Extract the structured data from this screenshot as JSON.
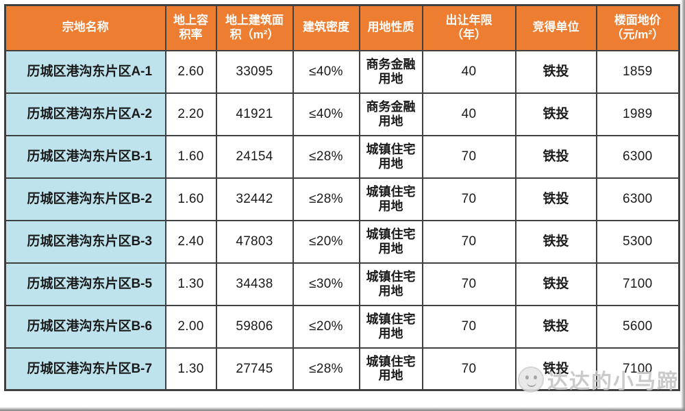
{
  "colors": {
    "header_bg": "#ED7D31",
    "header_text": "#FFFFFF",
    "name_col_bg": "#BEE3ED",
    "border": "#404040",
    "body_text": "#1A1A1A",
    "watermark": "#C3C3C3"
  },
  "table": {
    "headers": [
      {
        "label": "宗地名称"
      },
      {
        "label": "地上容\n积率"
      },
      {
        "label": "地上建筑面\n积（m²）"
      },
      {
        "label": "建筑密度"
      },
      {
        "label": "用地性质"
      },
      {
        "label": "出让年限\n（年）"
      },
      {
        "label": "竞得单位"
      },
      {
        "label": "楼面地价\n（元/m²）"
      }
    ],
    "rows": [
      {
        "cells": [
          "历城区港沟东片区A-1",
          "2.60",
          "33095",
          "≤40%",
          "商务金融\n用地",
          "40",
          "铁投",
          "1859"
        ]
      },
      {
        "cells": [
          "历城区港沟东片区A-2",
          "2.20",
          "41921",
          "≤40%",
          "商务金融\n用地",
          "40",
          "铁投",
          "1989"
        ]
      },
      {
        "cells": [
          "历城区港沟东片区B-1",
          "1.60",
          "24154",
          "≤28%",
          "城镇住宅\n用地",
          "70",
          "铁投",
          "6300"
        ]
      },
      {
        "cells": [
          "历城区港沟东片区B-2",
          "1.60",
          "32442",
          "≤28%",
          "城镇住宅\n用地",
          "70",
          "铁投",
          "6300"
        ]
      },
      {
        "cells": [
          "历城区港沟东片区B-3",
          "2.40",
          "47803",
          "≤20%",
          "城镇住宅\n用地",
          "70",
          "铁投",
          "5300"
        ]
      },
      {
        "cells": [
          "历城区港沟东片区B-5",
          "1.30",
          "34438",
          "≤30%",
          "城镇住宅\n用地",
          "70",
          "铁投",
          "7100"
        ]
      },
      {
        "cells": [
          "历城区港沟东片区B-6",
          "2.00",
          "59806",
          "≤20%",
          "城镇住宅\n用地",
          "70",
          "铁投",
          "5600"
        ]
      },
      {
        "cells": [
          "历城区港沟东片区B-7",
          "1.30",
          "27745",
          "≤28%",
          "城镇住宅\n用地",
          "70",
          "铁投",
          "7100"
        ]
      }
    ]
  },
  "watermark": {
    "text": "达达的小马蹄",
    "icon": "wechat-emoji-icon"
  }
}
